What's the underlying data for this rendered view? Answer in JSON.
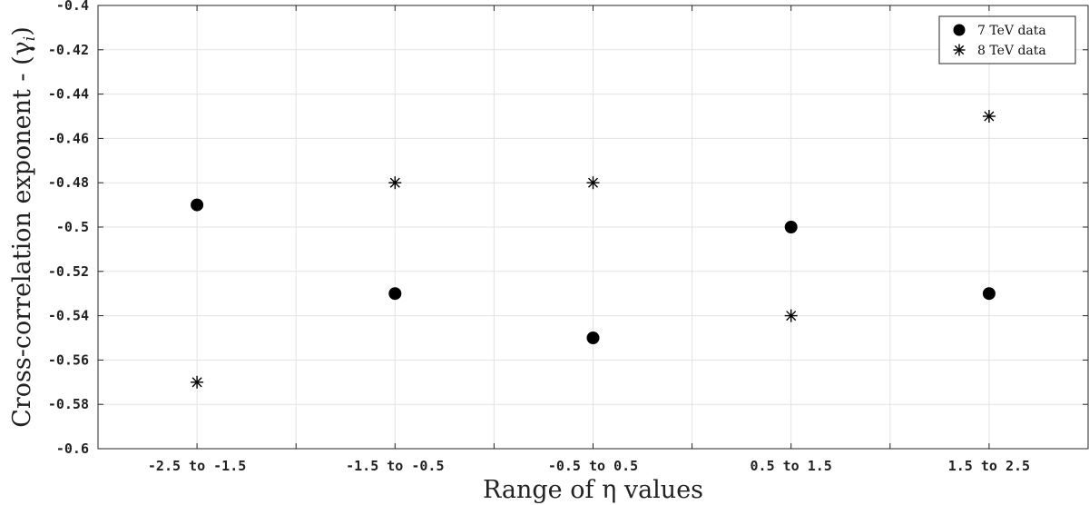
{
  "chart_data": {
    "type": "scatter",
    "title": "",
    "xlabel": "Range of η values",
    "ylabel": "Cross-correlation exponent - (γ",
    "ylabel_sub": "i",
    "ylabel_close": ")",
    "categories": [
      "-2.5 to -1.5",
      "-1.5 to -0.5",
      "-0.5 to 0.5",
      "0.5 to 1.5",
      "1.5 to 2.5"
    ],
    "ylim": [
      -0.6,
      -0.4
    ],
    "yticks": [
      -0.6,
      -0.58,
      -0.56,
      -0.54,
      -0.52,
      -0.5,
      -0.48,
      -0.46,
      -0.44,
      -0.42,
      -0.4
    ],
    "ytick_labels": [
      "-0.6",
      "-0.58",
      "-0.56",
      "-0.54",
      "-0.52",
      "-0.5",
      "-0.48",
      "-0.46",
      "-0.44",
      "-0.42",
      "-0.4"
    ],
    "grid": true,
    "legend_position": "top-right",
    "series": [
      {
        "name": "7 TeV data",
        "marker": "circle",
        "values": [
          -0.49,
          -0.53,
          -0.55,
          -0.5,
          -0.53
        ]
      },
      {
        "name": "8 TeV data",
        "marker": "asterisk",
        "values": [
          -0.57,
          -0.48,
          -0.48,
          -0.54,
          -0.45
        ]
      }
    ]
  }
}
